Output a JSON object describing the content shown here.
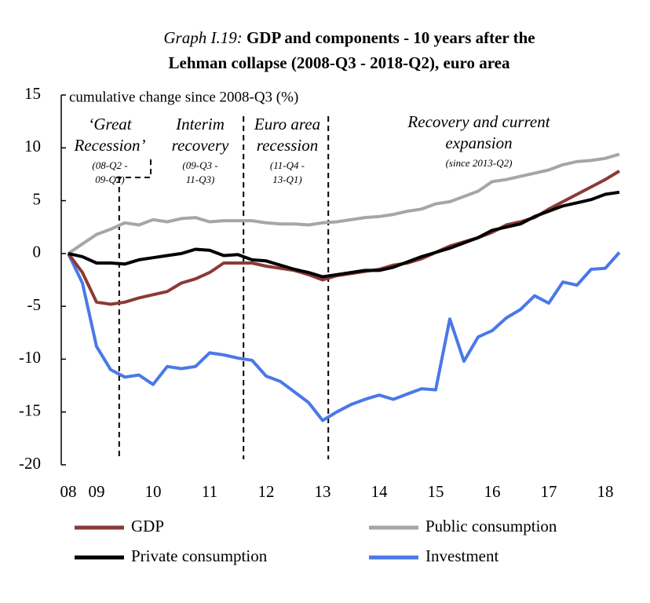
{
  "chart_data": {
    "type": "line",
    "title_prefix": "Graph I.19:",
    "title_lines": [
      "GDP and components - 10 years after the",
      "Lehman collapse (2008-Q3 - 2018-Q2), euro area"
    ],
    "y_label": "cumulative change since 2008-Q3 (%)",
    "annotations": [
      {
        "lines": [
          "‘Great",
          "Recession’"
        ],
        "note": [
          "(08-Q2 -",
          "09-Q2)"
        ]
      },
      {
        "lines": [
          "Interim",
          "recovery"
        ],
        "note": [
          "(09-Q3 -",
          "11-Q3)"
        ]
      },
      {
        "lines": [
          "Euro area",
          "recession"
        ],
        "note": [
          "(11-Q4 -",
          "13-Q1)"
        ]
      },
      {
        "lines": [
          "Recovery and current",
          "expansion"
        ],
        "note": [
          "(since 2013-Q2)"
        ]
      }
    ],
    "period_boundaries": [
      2009.4,
      2011.6,
      2013.1
    ],
    "x": [
      2008.5,
      2008.75,
      2009,
      2009.25,
      2009.5,
      2009.75,
      2010,
      2010.25,
      2010.5,
      2010.75,
      2011,
      2011.25,
      2011.5,
      2011.75,
      2012,
      2012.25,
      2012.5,
      2012.75,
      2013,
      2013.25,
      2013.5,
      2013.75,
      2014,
      2014.25,
      2014.5,
      2014.75,
      2015,
      2015.25,
      2015.5,
      2015.75,
      2016,
      2016.25,
      2016.5,
      2016.75,
      2017,
      2017.25,
      2017.5,
      2017.75,
      2018,
      2018.25
    ],
    "series": [
      {
        "name": "GDP",
        "color": "#8b3a36",
        "values": [
          0,
          -1.8,
          -4.6,
          -4.8,
          -4.6,
          -4.2,
          -3.9,
          -3.6,
          -2.8,
          -2.4,
          -1.8,
          -0.9,
          -0.9,
          -0.9,
          -1.2,
          -1.4,
          -1.6,
          -2.0,
          -2.5,
          -2.1,
          -1.9,
          -1.7,
          -1.5,
          -1.1,
          -0.9,
          -0.5,
          0.1,
          0.7,
          1.1,
          1.5,
          2.0,
          2.7,
          3.0,
          3.4,
          4.2,
          4.9,
          5.6,
          6.3,
          7.0,
          7.8
        ]
      },
      {
        "name": "Public consumption",
        "color": "#a6a6a6",
        "values": [
          0,
          0.9,
          1.8,
          2.3,
          2.9,
          2.7,
          3.2,
          3.0,
          3.3,
          3.4,
          3.0,
          3.1,
          3.1,
          3.1,
          2.9,
          2.8,
          2.8,
          2.7,
          2.9,
          3.0,
          3.2,
          3.4,
          3.5,
          3.7,
          4.0,
          4.2,
          4.7,
          4.9,
          5.4,
          5.9,
          6.8,
          7.0,
          7.3,
          7.6,
          7.9,
          8.4,
          8.7,
          8.8,
          9.0,
          9.4
        ]
      },
      {
        "name": "Private consumption",
        "color": "#000000",
        "values": [
          0,
          -0.3,
          -0.9,
          -0.9,
          -1.0,
          -0.6,
          -0.4,
          -0.2,
          0.0,
          0.4,
          0.3,
          -0.2,
          -0.1,
          -0.6,
          -0.7,
          -1.1,
          -1.5,
          -1.8,
          -2.2,
          -2.0,
          -1.8,
          -1.6,
          -1.6,
          -1.3,
          -0.8,
          -0.3,
          0.1,
          0.5,
          1.0,
          1.5,
          2.2,
          2.5,
          2.8,
          3.5,
          4.0,
          4.5,
          4.8,
          5.1,
          5.6,
          5.8
        ]
      },
      {
        "name": "Investment",
        "color": "#4a78e8",
        "values": [
          0,
          -2.8,
          -8.8,
          -11.0,
          -11.7,
          -11.5,
          -12.4,
          -10.7,
          -10.9,
          -10.7,
          -9.4,
          -9.6,
          -9.9,
          -10.1,
          -11.6,
          -12.1,
          -13.1,
          -14.1,
          -15.8,
          -15.0,
          -14.3,
          -13.8,
          -13.4,
          -13.8,
          -13.3,
          -12.8,
          -12.9,
          -6.2,
          -10.2,
          -7.9,
          -7.3,
          -6.1,
          -5.3,
          -4.0,
          -4.7,
          -2.7,
          -3.0,
          -1.5,
          -1.4,
          0.1
        ]
      }
    ],
    "xlim": [
      2008.375,
      2018.5
    ],
    "xticks": [
      {
        "value": 2008.5,
        "label": "08"
      },
      {
        "value": 2009,
        "label": "09"
      },
      {
        "value": 2010,
        "label": "10"
      },
      {
        "value": 2011,
        "label": "11"
      },
      {
        "value": 2012,
        "label": "12"
      },
      {
        "value": 2013,
        "label": "13"
      },
      {
        "value": 2014,
        "label": "14"
      },
      {
        "value": 2015,
        "label": "15"
      },
      {
        "value": 2016,
        "label": "16"
      },
      {
        "value": 2017,
        "label": "17"
      },
      {
        "value": 2018,
        "label": "18"
      }
    ],
    "ylim": [
      -20,
      15
    ],
    "yticks": [
      -20,
      -15,
      -10,
      -5,
      0,
      5,
      10,
      15
    ],
    "grid": false
  }
}
